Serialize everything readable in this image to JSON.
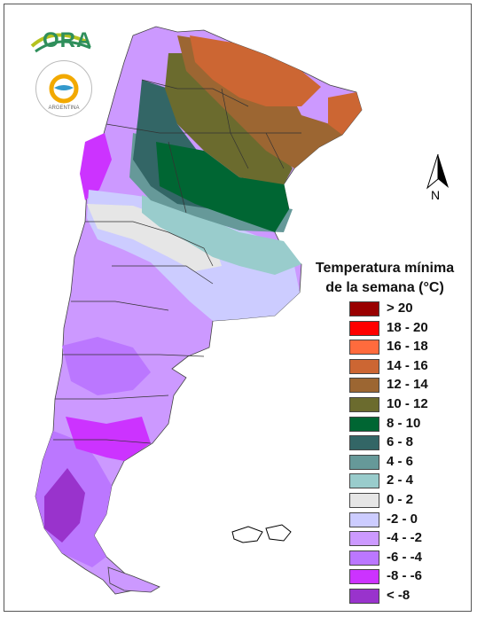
{
  "logo": {
    "ora_text": "ORA",
    "seal_text": "ARGENTINA"
  },
  "north_arrow": {
    "label": "N"
  },
  "legend": {
    "title_line1": "Temperatura mínima",
    "title_line2": "de la semana (°C)",
    "items": [
      {
        "label": "> 20",
        "color": "#990000"
      },
      {
        "label": "18 - 20",
        "color": "#ff0000"
      },
      {
        "label": "16 - 18",
        "color": "#ff6b3d"
      },
      {
        "label": "14 - 16",
        "color": "#cc6633"
      },
      {
        "label": "12 - 14",
        "color": "#9c6632"
      },
      {
        "label": "10 - 12",
        "color": "#6b6b2e"
      },
      {
        "label": "8 - 10",
        "color": "#006633"
      },
      {
        "label": "6 - 8",
        "color": "#336666"
      },
      {
        "label": "4 - 6",
        "color": "#669999"
      },
      {
        "label": "2 - 4",
        "color": "#99cccc"
      },
      {
        "label": "0 - 2",
        "color": "#e6e6e6"
      },
      {
        "label": "-2 - 0",
        "color": "#ccccff"
      },
      {
        "label": "-4 - -2",
        "color": "#cc99ff"
      },
      {
        "label": "-6 - -4",
        "color": "#bb77ff"
      },
      {
        "label": "-8 - -6",
        "color": "#cc33ff"
      },
      {
        "label": "< -8",
        "color": "#9933cc"
      }
    ]
  }
}
